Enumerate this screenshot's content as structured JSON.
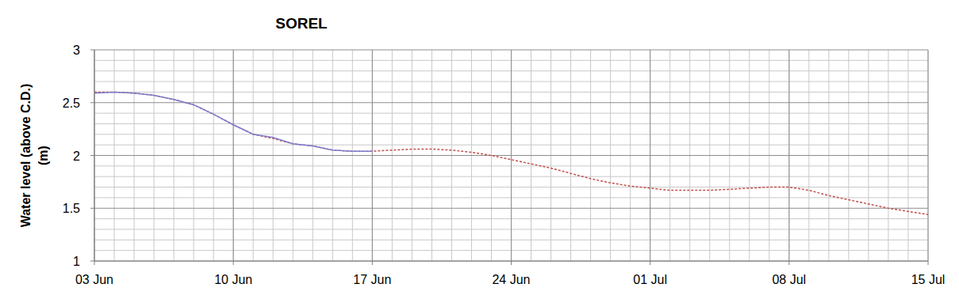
{
  "chart_data": {
    "type": "line",
    "title": "SOREL",
    "y_label": "Water level (above C.D.)\n(m)",
    "x": [
      0,
      1,
      2,
      3,
      4,
      5,
      6,
      7,
      8,
      9,
      10,
      11,
      12,
      13,
      14,
      15,
      16,
      17,
      18,
      19,
      20,
      21,
      22,
      23,
      24,
      25,
      26,
      27,
      28,
      29,
      30,
      31,
      32,
      33,
      34,
      35,
      36,
      37,
      38,
      39,
      40,
      41,
      42
    ],
    "series": [
      {
        "color": "#7b7fcf",
        "line_style": "solid",
        "values": [
          2.59,
          2.6,
          2.59,
          2.57,
          2.53,
          2.48,
          2.39,
          2.29,
          2.2,
          2.17,
          2.11,
          2.09,
          2.05,
          2.04,
          2.04,
          null,
          null,
          null,
          null,
          null,
          null,
          null,
          null,
          null,
          null,
          null,
          null,
          null,
          null,
          null,
          null,
          null,
          null,
          null,
          null,
          null,
          null,
          null,
          null,
          null,
          null,
          null,
          null
        ]
      },
      {
        "color": "#c0504d",
        "line_style": "dashed",
        "values": [
          2.6,
          2.6,
          2.59,
          2.57,
          2.53,
          2.48,
          2.39,
          2.29,
          2.2,
          2.16,
          2.11,
          2.09,
          2.05,
          2.04,
          2.04,
          2.05,
          2.06,
          2.06,
          2.05,
          2.03,
          2.0,
          1.96,
          1.92,
          1.88,
          1.83,
          1.78,
          1.74,
          1.71,
          1.69,
          1.67,
          1.67,
          1.67,
          1.68,
          1.69,
          1.7,
          1.7,
          1.67,
          1.62,
          1.58,
          1.54,
          1.5,
          1.47,
          1.44
        ]
      }
    ],
    "xlim": [
      0,
      42
    ],
    "xticks": [
      {
        "value": 0,
        "label": "03 Jun"
      },
      {
        "value": 7,
        "label": "10 Jun"
      },
      {
        "value": 14,
        "label": "17 Jun"
      },
      {
        "value": 21,
        "label": "24 Jun"
      },
      {
        "value": 28,
        "label": "01 Jul"
      },
      {
        "value": 35,
        "label": "08 Jul"
      },
      {
        "value": 42,
        "label": "15 Jul"
      }
    ],
    "ylim": [
      1,
      3
    ],
    "yticks": [
      1,
      1.5,
      2,
      2.5,
      3
    ],
    "grid": true
  }
}
